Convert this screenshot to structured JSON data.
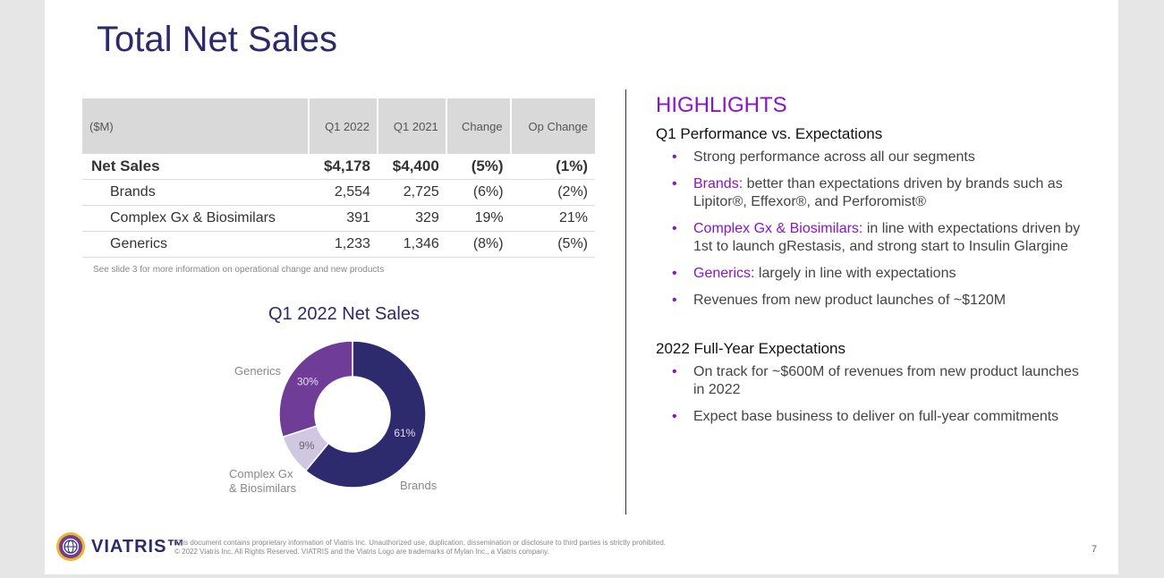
{
  "title": "Total Net Sales",
  "table": {
    "headers": [
      "($M)",
      "Q1 2022",
      "Q1 2021",
      "Change",
      "Op Change"
    ],
    "rows": [
      [
        "Net Sales",
        "$4,178",
        "$4,400",
        "(5%)",
        "(1%)"
      ],
      [
        "Brands",
        "2,554",
        "2,725",
        "(6%)",
        "(2%)"
      ],
      [
        "Complex Gx & Biosimilars",
        "391",
        "329",
        "19%",
        "21%"
      ],
      [
        "Generics",
        "1,233",
        "1,346",
        "(8%)",
        "(5%)"
      ]
    ],
    "note": "See slide 3 for more information on operational change and new products"
  },
  "chart_data": {
    "type": "pie",
    "title": "Q1 2022 Net Sales",
    "categories": [
      "Brands",
      "Complex Gx & Biosimilars",
      "Generics"
    ],
    "values": [
      61,
      9,
      30
    ],
    "labels": [
      "61%",
      "9%",
      "30%"
    ],
    "colors": [
      "#2e2a6e",
      "#cfc8e0",
      "#6f3c98"
    ],
    "label_names": [
      "Brands",
      "Complex Gx",
      "& Biosimilars",
      "Generics"
    ]
  },
  "highlights": {
    "heading": "HIGHLIGHTS",
    "sub1": "Q1 Performance vs. Expectations",
    "b1": "Strong performance across all our segments",
    "b2k": "Brands:",
    "b2": " better than expectations driven by brands such as Lipitor®, Effexor®, and Perforomist®",
    "b3k": "Complex Gx & Biosimilars:",
    "b3": " in line with expectations driven by 1st to launch gRestasis, and strong start to Insulin Glargine",
    "b4k": "Generics:",
    "b4": " largely in line with expectations",
    "b5": "Revenues from new product launches of ~$120M",
    "sub2": "2022 Full-Year Expectations",
    "c1": "On track for ~$600M of revenues from new product launches in 2022",
    "c2": "Expect base business to deliver on full-year commitments"
  },
  "footer": {
    "logo": "VIATRIS™",
    "line1": "This document contains proprietary information of Viatris Inc. Unauthorized use, duplication, dissemination or disclosure to third parties is strictly prohibited.",
    "line2": "© 2022 Viatris Inc. All Rights Reserved. VIATRIS and the Viatris Logo are trademarks of Mylan Inc., a Viatris company.",
    "page": "7"
  }
}
